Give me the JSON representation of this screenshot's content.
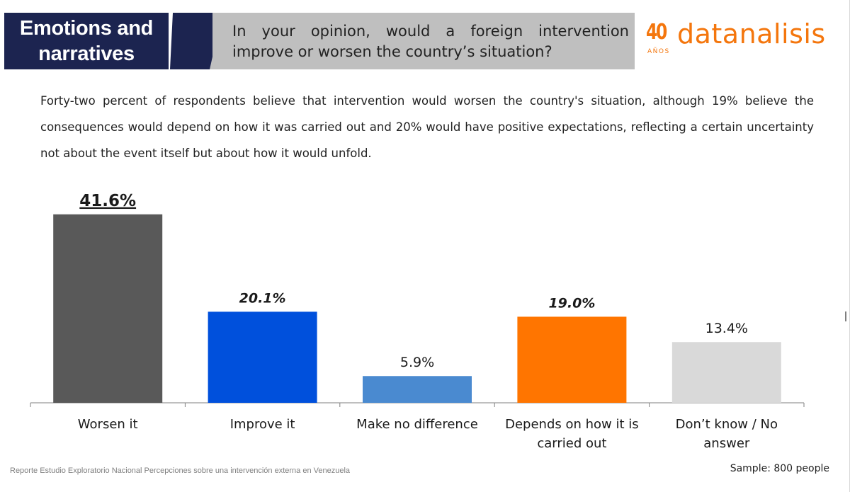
{
  "header": {
    "section_line1": "Emotions and",
    "section_line2": "narratives",
    "question": "In your opinion, would a foreign intervention improve or worsen the country’s situation?"
  },
  "logo": {
    "number": "40",
    "anos": "AÑOS",
    "word": "datanalisis"
  },
  "summary": "Forty-two percent of respondents believe that intervention would worsen the country's situation, although 19% believe the consequences would depend on how it was carried out and 20% would have positive expectations, reflecting a certain uncertainty not about the event itself but about how it would unfold.",
  "footer": {
    "source": "Reporte Estudio Exploratorio Nacional Percepciones sobre una intervención externa en Venezuela",
    "sample": "Sample: 800 people"
  },
  "colors": {
    "navy": "#1c2450",
    "orange": "#f4760d"
  },
  "chart_data": {
    "type": "bar",
    "title": "",
    "xlabel": "",
    "ylabel": "",
    "ylim": [
      0,
      45
    ],
    "categories": [
      [
        "Worsen it"
      ],
      [
        "Improve it"
      ],
      [
        "Make no difference"
      ],
      [
        "Depends on how it is",
        "carried out"
      ],
      [
        "Don’t know / No",
        "answer"
      ]
    ],
    "values": [
      41.6,
      20.1,
      5.9,
      19.0,
      13.4
    ],
    "labels": [
      "41.6%",
      "20.1%",
      "5.9%",
      "19.0%",
      "13.4%"
    ],
    "colors": [
      "#595959",
      "#0050dc",
      "#4a8ad0",
      "#ff7500",
      "#d9d9d9"
    ],
    "label_styles": [
      "bold-underline",
      "bold-italic",
      "normal",
      "bold-italic",
      "normal"
    ]
  }
}
